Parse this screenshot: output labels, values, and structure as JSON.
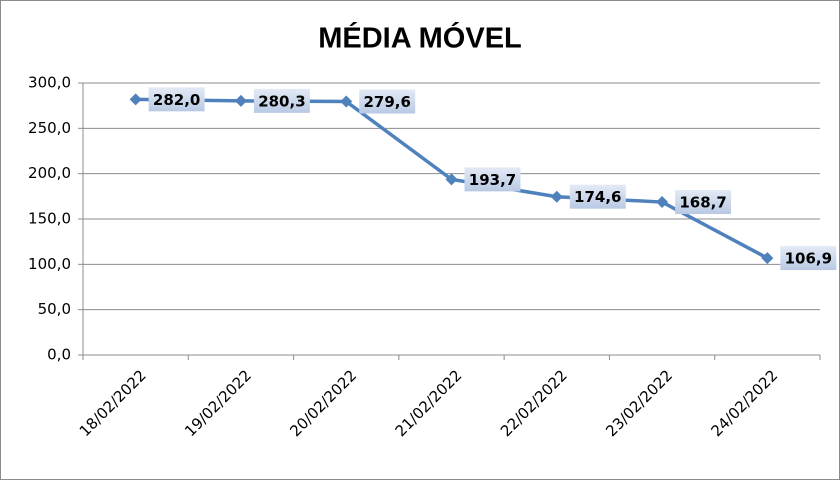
{
  "chart_data": {
    "type": "line",
    "title": "MÉDIA MÓVEL",
    "categories": [
      "18/02/2022",
      "19/02/2022",
      "20/02/2022",
      "21/02/2022",
      "22/02/2022",
      "23/02/2022",
      "24/02/2022"
    ],
    "values": [
      282.0,
      280.3,
      279.6,
      193.7,
      174.6,
      168.7,
      106.9
    ],
    "value_labels": [
      "282,0",
      "280,3",
      "279,6",
      "193,7",
      "174,6",
      "168,7",
      "106,9"
    ],
    "color": "#4f81bd",
    "ylim": [
      0,
      300
    ],
    "yticks": [
      {
        "value": 0,
        "label": "0,0"
      },
      {
        "value": 50,
        "label": "50,0"
      },
      {
        "value": 100,
        "label": "100,0"
      },
      {
        "value": 150,
        "label": "150,0"
      },
      {
        "value": 200,
        "label": "200,0"
      },
      {
        "value": 250,
        "label": "250,0"
      },
      {
        "value": 300,
        "label": "300,0"
      }
    ],
    "grid": true
  }
}
